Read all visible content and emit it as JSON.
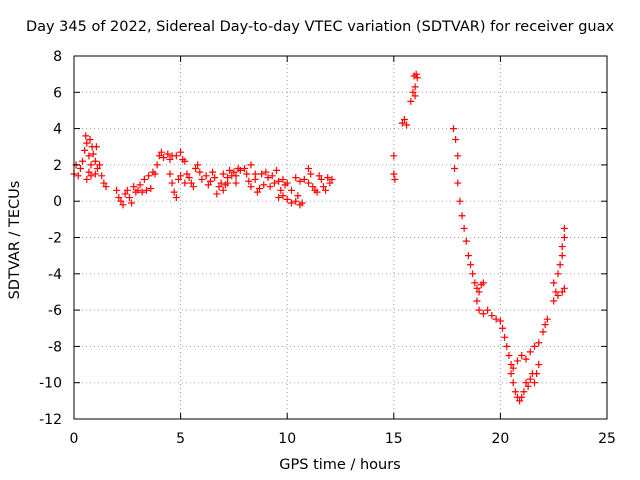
{
  "chart_data": {
    "type": "scatter",
    "title": "Day 345 of 2022, Sidereal Day-to-day VTEC variation (SDTVAR) for receiver guax",
    "xlabel": "GPS time / hours",
    "ylabel": "SDTVAR / TECUs",
    "xlim": [
      0,
      25
    ],
    "ylim": [
      -12,
      8
    ],
    "xticks": [
      0,
      5,
      10,
      15,
      20,
      25
    ],
    "yticks": [
      -12,
      -10,
      -8,
      -6,
      -4,
      -2,
      0,
      2,
      4,
      6,
      8
    ],
    "grid": true,
    "marker": "+",
    "color": "#ff0000",
    "series": [
      {
        "name": "SDTVAR",
        "points": [
          [
            0.0,
            1.5
          ],
          [
            0.1,
            2.0
          ],
          [
            0.2,
            1.4
          ],
          [
            0.3,
            1.8
          ],
          [
            0.4,
            2.2
          ],
          [
            0.5,
            2.8
          ],
          [
            0.55,
            3.6
          ],
          [
            0.6,
            3.2
          ],
          [
            0.7,
            2.5
          ],
          [
            0.75,
            3.4
          ],
          [
            0.8,
            2.0
          ],
          [
            0.85,
            3.0
          ],
          [
            0.9,
            2.6
          ],
          [
            1.0,
            2.2
          ],
          [
            1.05,
            3.0
          ],
          [
            1.1,
            1.8
          ],
          [
            1.2,
            2.0
          ],
          [
            1.3,
            1.4
          ],
          [
            1.4,
            1.0
          ],
          [
            1.5,
            0.8
          ],
          [
            0.6,
            1.2
          ],
          [
            0.7,
            1.6
          ],
          [
            0.8,
            1.4
          ],
          [
            1.0,
            1.5
          ],
          [
            2.0,
            0.6
          ],
          [
            2.1,
            0.2
          ],
          [
            2.2,
            0.0
          ],
          [
            2.3,
            -0.2
          ],
          [
            2.4,
            0.4
          ],
          [
            2.5,
            0.6
          ],
          [
            2.6,
            0.2
          ],
          [
            2.7,
            -0.1
          ],
          [
            2.8,
            0.8
          ],
          [
            2.9,
            0.5
          ],
          [
            3.0,
            0.6
          ],
          [
            3.1,
            0.9
          ],
          [
            3.2,
            0.5
          ],
          [
            3.3,
            1.2
          ],
          [
            3.4,
            0.6
          ],
          [
            3.5,
            1.4
          ],
          [
            3.6,
            0.7
          ],
          [
            3.7,
            1.6
          ],
          [
            3.8,
            1.5
          ],
          [
            3.9,
            2.0
          ],
          [
            4.0,
            2.5
          ],
          [
            4.1,
            2.7
          ],
          [
            4.2,
            2.4
          ],
          [
            4.4,
            2.6
          ],
          [
            4.5,
            2.3
          ],
          [
            4.6,
            2.5
          ],
          [
            4.8,
            2.5
          ],
          [
            5.0,
            2.7
          ],
          [
            5.1,
            2.3
          ],
          [
            5.2,
            2.2
          ],
          [
            4.5,
            1.5
          ],
          [
            4.6,
            1.0
          ],
          [
            4.7,
            0.5
          ],
          [
            4.8,
            0.2
          ],
          [
            4.9,
            1.2
          ],
          [
            5.0,
            1.4
          ],
          [
            5.2,
            1.0
          ],
          [
            5.3,
            1.5
          ],
          [
            5.4,
            1.3
          ],
          [
            5.5,
            1.0
          ],
          [
            5.6,
            0.8
          ],
          [
            5.7,
            1.8
          ],
          [
            5.8,
            2.0
          ],
          [
            5.9,
            1.6
          ],
          [
            6.0,
            1.2
          ],
          [
            6.2,
            1.4
          ],
          [
            6.3,
            0.9
          ],
          [
            6.4,
            1.1
          ],
          [
            6.5,
            1.6
          ],
          [
            6.6,
            1.3
          ],
          [
            6.7,
            0.4
          ],
          [
            6.8,
            0.8
          ],
          [
            6.9,
            1.0
          ],
          [
            7.0,
            1.5
          ],
          [
            7.1,
            0.9
          ],
          [
            7.2,
            1.3
          ],
          [
            7.3,
            1.7
          ],
          [
            7.4,
            1.4
          ],
          [
            7.5,
            1.6
          ],
          [
            7.6,
            1.0
          ],
          [
            7.7,
            1.8
          ],
          [
            7.8,
            1.7
          ],
          [
            8.0,
            1.8
          ],
          [
            8.1,
            1.5
          ],
          [
            8.3,
            2.0
          ],
          [
            8.5,
            1.5
          ],
          [
            7.0,
            0.6
          ],
          [
            7.2,
            1.0
          ],
          [
            7.6,
            1.4
          ],
          [
            8.2,
            1.1
          ],
          [
            8.3,
            0.8
          ],
          [
            8.5,
            1.2
          ],
          [
            8.6,
            0.5
          ],
          [
            8.7,
            0.7
          ],
          [
            8.8,
            1.5
          ],
          [
            8.9,
            0.9
          ],
          [
            9.0,
            1.6
          ],
          [
            9.1,
            1.3
          ],
          [
            9.2,
            0.8
          ],
          [
            9.3,
            1.4
          ],
          [
            9.4,
            1.0
          ],
          [
            9.5,
            1.7
          ],
          [
            9.6,
            1.1
          ],
          [
            9.7,
            0.6
          ],
          [
            9.8,
            1.2
          ],
          [
            9.9,
            0.9
          ],
          [
            10.0,
            1.0
          ],
          [
            10.2,
            0.6
          ],
          [
            10.4,
            1.3
          ],
          [
            10.5,
            0.3
          ],
          [
            10.6,
            1.1
          ],
          [
            10.8,
            1.2
          ],
          [
            11.0,
            1.0
          ],
          [
            9.6,
            0.2
          ],
          [
            9.8,
            0.3
          ],
          [
            10.0,
            0.1
          ],
          [
            10.2,
            -0.1
          ],
          [
            10.4,
            0.0
          ],
          [
            10.6,
            -0.2
          ],
          [
            10.7,
            -0.1
          ],
          [
            11.0,
            1.8
          ],
          [
            11.1,
            1.5
          ],
          [
            11.2,
            0.8
          ],
          [
            11.3,
            0.6
          ],
          [
            11.4,
            0.5
          ],
          [
            11.6,
            1.2
          ],
          [
            11.8,
            0.6
          ],
          [
            12.0,
            1.0
          ],
          [
            12.1,
            1.2
          ],
          [
            11.5,
            1.4
          ],
          [
            11.7,
            0.8
          ],
          [
            11.9,
            1.3
          ],
          [
            15.0,
            2.5
          ],
          [
            15.0,
            1.5
          ],
          [
            15.05,
            1.2
          ],
          [
            15.4,
            4.3
          ],
          [
            15.5,
            4.5
          ],
          [
            15.6,
            4.2
          ],
          [
            15.8,
            5.5
          ],
          [
            15.9,
            6.0
          ],
          [
            16.0,
            6.3
          ],
          [
            16.0,
            5.8
          ],
          [
            15.95,
            6.9
          ],
          [
            16.05,
            7.0
          ],
          [
            16.1,
            6.8
          ],
          [
            17.8,
            4.0
          ],
          [
            17.9,
            3.4
          ],
          [
            18.0,
            2.5
          ],
          [
            17.85,
            1.8
          ],
          [
            18.0,
            1.0
          ],
          [
            18.1,
            0.0
          ],
          [
            18.2,
            -0.8
          ],
          [
            18.3,
            -1.5
          ],
          [
            18.4,
            -2.2
          ],
          [
            18.5,
            -3.0
          ],
          [
            18.6,
            -3.5
          ],
          [
            18.7,
            -4.0
          ],
          [
            18.8,
            -4.5
          ],
          [
            18.9,
            -4.8
          ],
          [
            19.0,
            -5.0
          ],
          [
            19.1,
            -4.6
          ],
          [
            19.2,
            -4.5
          ],
          [
            18.9,
            -5.5
          ],
          [
            19.0,
            -6.0
          ],
          [
            19.2,
            -6.2
          ],
          [
            19.4,
            -6.0
          ],
          [
            19.6,
            -6.3
          ],
          [
            19.8,
            -6.5
          ],
          [
            20.0,
            -6.6
          ],
          [
            20.1,
            -7.0
          ],
          [
            20.2,
            -7.5
          ],
          [
            20.3,
            -8.0
          ],
          [
            20.4,
            -8.5
          ],
          [
            20.5,
            -9.5
          ],
          [
            20.6,
            -10.0
          ],
          [
            20.7,
            -10.5
          ],
          [
            20.8,
            -10.8
          ],
          [
            20.9,
            -11.0
          ],
          [
            21.0,
            -10.8
          ],
          [
            21.1,
            -10.5
          ],
          [
            21.2,
            -10.0
          ],
          [
            21.3,
            -10.2
          ],
          [
            21.4,
            -9.8
          ],
          [
            21.5,
            -9.5
          ],
          [
            21.6,
            -10.0
          ],
          [
            21.7,
            -9.5
          ],
          [
            21.8,
            -9.0
          ],
          [
            20.5,
            -9.0
          ],
          [
            20.6,
            -9.2
          ],
          [
            20.8,
            -8.8
          ],
          [
            21.0,
            -8.5
          ],
          [
            21.2,
            -8.7
          ],
          [
            21.4,
            -8.3
          ],
          [
            21.6,
            -8.0
          ],
          [
            21.8,
            -7.8
          ],
          [
            22.0,
            -7.2
          ],
          [
            22.1,
            -6.8
          ],
          [
            22.2,
            -6.5
          ],
          [
            22.5,
            -5.5
          ],
          [
            22.6,
            -5.0
          ],
          [
            22.5,
            -4.5
          ],
          [
            22.7,
            -4.0
          ],
          [
            22.8,
            -3.5
          ],
          [
            22.9,
            -3.0
          ],
          [
            22.9,
            -2.5
          ],
          [
            23.0,
            -2.0
          ],
          [
            23.0,
            -1.5
          ],
          [
            22.7,
            -5.2
          ],
          [
            22.9,
            -5.0
          ],
          [
            23.0,
            -4.8
          ]
        ]
      }
    ]
  }
}
